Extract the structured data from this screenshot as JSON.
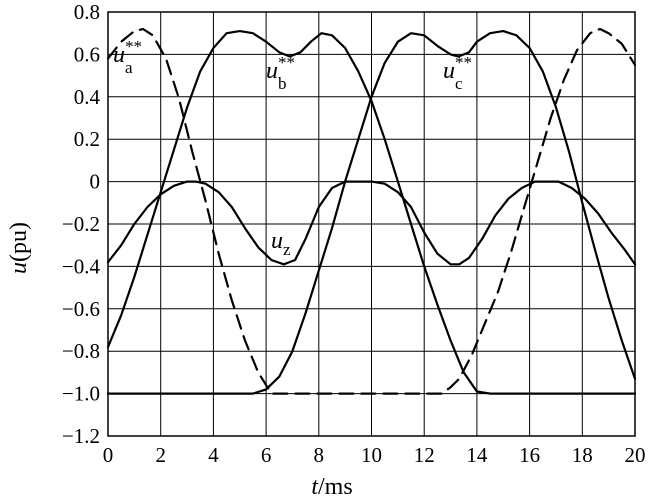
{
  "chart_data": {
    "type": "line",
    "xlabel": {
      "italic": "t",
      "text": "/ms"
    },
    "ylabel": {
      "italic": "u",
      "text": "(pu)"
    },
    "xlim": [
      0,
      20
    ],
    "ylim": [
      -1.2,
      0.8
    ],
    "xticks": [
      0,
      2,
      4,
      6,
      8,
      10,
      12,
      14,
      16,
      18,
      20
    ],
    "xtick_labels": [
      "0",
      "2",
      "4",
      "6",
      "8",
      "10",
      "12",
      "14",
      "16",
      "18",
      "20"
    ],
    "yticks": [
      0.8,
      0.6,
      0.4,
      0.2,
      0,
      -0.2,
      -0.4,
      -0.6,
      -0.8,
      -1.0,
      -1.2
    ],
    "ytick_labels": [
      "0.8",
      "0.6",
      "0.4",
      "0.2",
      "0",
      "−0.2",
      "−0.4",
      "−0.6",
      "−0.8",
      "−1.0",
      "−1.2"
    ],
    "grid": true,
    "series": [
      {
        "name": "u_a**",
        "style": "dashed",
        "x": [
          0,
          0.5,
          1,
          1.33,
          1.7,
          2.2,
          2.7,
          3.2,
          3.7,
          4.2,
          4.7,
          5.2,
          5.7,
          6.2,
          6.67,
          7,
          7.33,
          8,
          10,
          12,
          12.67,
          13,
          13.33,
          13.8,
          14.3,
          14.8,
          15.3,
          15.8,
          16.3,
          16.8,
          17.3,
          17.8,
          18.3,
          18.67,
          19,
          19.5,
          20
        ],
        "y": [
          0.58,
          0.66,
          0.71,
          0.72,
          0.69,
          0.58,
          0.39,
          0.14,
          -0.09,
          -0.34,
          -0.56,
          -0.75,
          -0.9,
          -1.0,
          -1.0,
          -1.0,
          -1.0,
          -1.0,
          -1.0,
          -1.0,
          -1.0,
          -0.97,
          -0.93,
          -0.82,
          -0.67,
          -0.52,
          -0.33,
          -0.12,
          0.09,
          0.3,
          0.48,
          0.62,
          0.7,
          0.72,
          0.7,
          0.65,
          0.55
        ]
      },
      {
        "name": "u_b**",
        "style": "solid",
        "x": [
          0,
          0.5,
          1,
          1.5,
          2,
          2.5,
          3,
          3.5,
          4,
          4.5,
          5,
          5.5,
          6,
          6.5,
          6.9,
          7.3,
          7.7,
          8.1,
          8.5,
          9,
          9.5,
          10,
          10.5,
          11,
          11.5,
          12,
          12.5,
          13,
          13.5,
          14,
          14.5,
          15,
          16,
          17,
          18,
          19,
          20
        ],
        "y": [
          -0.78,
          -0.63,
          -0.45,
          -0.25,
          -0.05,
          0.15,
          0.35,
          0.52,
          0.63,
          0.7,
          0.71,
          0.7,
          0.66,
          0.61,
          0.59,
          0.61,
          0.66,
          0.7,
          0.69,
          0.63,
          0.52,
          0.38,
          0.2,
          0.0,
          -0.2,
          -0.4,
          -0.58,
          -0.75,
          -0.9,
          -0.99,
          -1.0,
          -1.0,
          -1.0,
          -1.0,
          -1.0,
          -1.0,
          -1.0
        ]
      },
      {
        "name": "u_c**",
        "style": "solid",
        "x": [
          0,
          2,
          4,
          5,
          5.5,
          6,
          6.5,
          7,
          7.5,
          8,
          8.5,
          9,
          9.5,
          10,
          10.5,
          11,
          11.5,
          12,
          12.5,
          13,
          13.3,
          13.7,
          14,
          14.5,
          15,
          15.5,
          16,
          16.5,
          17,
          17.5,
          18,
          18.5,
          19,
          19.5,
          20
        ],
        "y": [
          -1.0,
          -1.0,
          -1.0,
          -1.0,
          -1.0,
          -0.98,
          -0.92,
          -0.8,
          -0.62,
          -0.42,
          -0.22,
          0.0,
          0.2,
          0.4,
          0.56,
          0.66,
          0.7,
          0.69,
          0.64,
          0.6,
          0.59,
          0.61,
          0.66,
          0.7,
          0.71,
          0.69,
          0.63,
          0.52,
          0.35,
          0.14,
          -0.1,
          -0.33,
          -0.55,
          -0.75,
          -0.93
        ]
      },
      {
        "name": "u_z",
        "style": "solid",
        "x": [
          0,
          0.5,
          1,
          1.5,
          2,
          2.5,
          3,
          3.33,
          3.7,
          4.2,
          4.7,
          5.2,
          5.7,
          6.2,
          6.67,
          7.1,
          7.5,
          8,
          8.5,
          9,
          9.5,
          10,
          10.5,
          11,
          11.5,
          12,
          12.5,
          13,
          13.33,
          13.7,
          14.2,
          14.7,
          15.2,
          15.7,
          16.2,
          16.67,
          17.1,
          17.6,
          18.1,
          18.6,
          19.1,
          19.6,
          20
        ],
        "y": [
          -0.38,
          -0.3,
          -0.2,
          -0.12,
          -0.06,
          -0.02,
          0.0,
          0.0,
          -0.01,
          -0.05,
          -0.12,
          -0.22,
          -0.31,
          -0.37,
          -0.39,
          -0.37,
          -0.27,
          -0.12,
          -0.03,
          0.0,
          0.0,
          0.0,
          -0.01,
          -0.05,
          -0.12,
          -0.24,
          -0.34,
          -0.39,
          -0.39,
          -0.36,
          -0.27,
          -0.16,
          -0.08,
          -0.03,
          0.0,
          0.0,
          0.0,
          -0.03,
          -0.08,
          -0.15,
          -0.24,
          -0.32,
          -0.39
        ]
      }
    ],
    "annotations": [
      {
        "text": "u",
        "sub": "a",
        "sup": "**",
        "series": "u_a**"
      },
      {
        "text": "u",
        "sub": "b",
        "sup": "**",
        "series": "u_b**"
      },
      {
        "text": "u",
        "sub": "c",
        "sup": "**",
        "series": "u_c**"
      },
      {
        "text": "u",
        "sub": "z",
        "sup": "",
        "series": "u_z"
      }
    ]
  }
}
